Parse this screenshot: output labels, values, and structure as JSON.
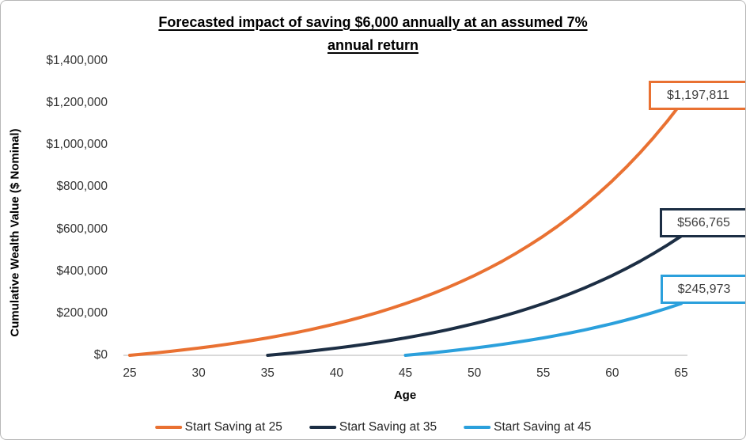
{
  "chart_data": {
    "type": "line",
    "title": "Forecasted impact of saving $6,000 annually at an assumed 7% annual return",
    "title_lines": [
      "Forecasted impact of saving $6,000 annually at an assumed 7%",
      "annual return"
    ],
    "xlabel": "Age",
    "ylabel": "Cumulative Wealth Value ($ Nominal)",
    "xlim": [
      25,
      65
    ],
    "ylim": [
      0,
      1400000
    ],
    "x_ticks": [
      25,
      30,
      35,
      40,
      45,
      50,
      55,
      60,
      65
    ],
    "y_ticks": [
      0,
      200000,
      400000,
      600000,
      800000,
      1000000,
      1200000,
      1400000
    ],
    "y_tick_labels": [
      "$0",
      "$200,000",
      "$400,000",
      "$600,000",
      "$800,000",
      "$1,000,000",
      "$1,200,000",
      "$1,400,000"
    ],
    "grid": false,
    "legend_position": "bottom",
    "axis_line_color": "#d9d9d9",
    "series": [
      {
        "name": "Start Saving at 25",
        "color": "#E97132",
        "end_label": "$1,197,811",
        "ages": [
          25,
          26,
          27,
          28,
          29,
          30,
          31,
          32,
          33,
          34,
          35,
          36,
          37,
          38,
          39,
          40,
          41,
          42,
          43,
          44,
          45,
          46,
          47,
          48,
          49,
          50,
          51,
          52,
          53,
          54,
          55,
          56,
          57,
          58,
          59,
          60,
          61,
          62,
          63,
          64,
          65
        ],
        "values": [
          0,
          6000,
          12420,
          19289,
          26640,
          34504,
          42920,
          51924,
          61559,
          71868,
          82899,
          94702,
          107331,
          120844,
          135303,
          150774,
          167328,
          185041,
          203994,
          224274,
          245973,
          269191,
          294034,
          320617,
          349060,
          379494,
          412059,
          446903,
          484186,
          524079,
          566765,
          612438,
          661309,
          713601,
          769553,
          829421,
          893481,
          962024,
          1035366,
          1113842,
          1197811
        ]
      },
      {
        "name": "Start Saving at 35",
        "color": "#1C2E44",
        "end_label": "$566,765",
        "ages": [
          35,
          36,
          37,
          38,
          39,
          40,
          41,
          42,
          43,
          44,
          45,
          46,
          47,
          48,
          49,
          50,
          51,
          52,
          53,
          54,
          55,
          56,
          57,
          58,
          59,
          60,
          61,
          62,
          63,
          64,
          65
        ],
        "values": [
          0,
          6000,
          12420,
          19289,
          26640,
          34504,
          42920,
          51924,
          61559,
          71868,
          82899,
          94702,
          107331,
          120844,
          135303,
          150774,
          167328,
          185041,
          203994,
          224274,
          245973,
          269191,
          294034,
          320617,
          349060,
          379494,
          412059,
          446903,
          484186,
          524079,
          566765
        ]
      },
      {
        "name": "Start Saving at 45",
        "color": "#2BA0DC",
        "end_label": "$245,973",
        "ages": [
          45,
          46,
          47,
          48,
          49,
          50,
          51,
          52,
          53,
          54,
          55,
          56,
          57,
          58,
          59,
          60,
          61,
          62,
          63,
          64,
          65
        ],
        "values": [
          0,
          6000,
          12420,
          19289,
          26640,
          34504,
          42920,
          51924,
          61559,
          71868,
          82899,
          94702,
          107331,
          120844,
          135303,
          150774,
          167328,
          185041,
          203994,
          224274,
          245973
        ]
      }
    ]
  }
}
